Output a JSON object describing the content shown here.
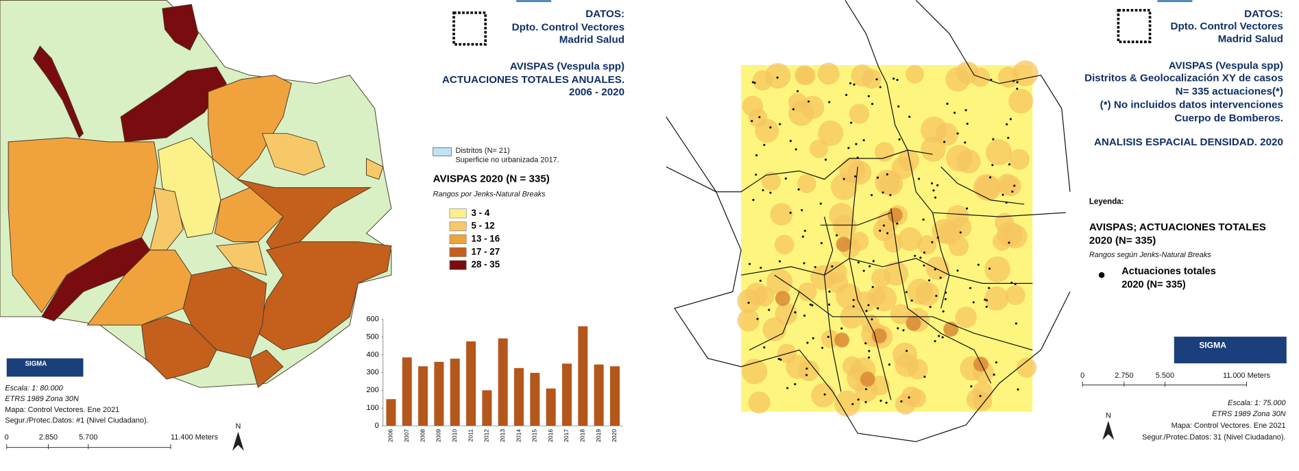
{
  "left_panel": {
    "source": [
      "DATOS:",
      "Dpto. Control Vectores",
      "Madrid Salud"
    ],
    "title": [
      "AVISPAS (Vespula spp)",
      "ACTUACIONES TOTALES ANUALES.",
      "2006 - 2020"
    ],
    "legend": {
      "districts": "Distritos (N= 21)",
      "non_urban": "Superficie no urbanizada 2017.",
      "title": "AVISPAS 2020 (N = 335)",
      "subtitle": "Rangos por Jenks-Natural Breaks",
      "classes": [
        {
          "label": "3 - 4",
          "color": "#fbf08a"
        },
        {
          "label": "5 - 12",
          "color": "#f6c868"
        },
        {
          "label": "13 - 16",
          "color": "#f0a33c"
        },
        {
          "label": "17 - 27",
          "color": "#c4601c"
        },
        {
          "label": "28 - 35",
          "color": "#780c0e"
        }
      ]
    },
    "logo": "SIGMA",
    "notes": [
      "Escala: 1: 80.000",
      "ETRS 1989 Zona 30N",
      "Mapa: Control Vectores. Ene 2021",
      "Segur./Protec.Datos: #1 (Nivel Ciudadano)."
    ],
    "scale": [
      "0",
      "2.850",
      "5.700",
      "11.400 Meters"
    ],
    "north": "N"
  },
  "chart_data": {
    "type": "bar",
    "categories": [
      "2006",
      "2007",
      "2008",
      "2009",
      "2010",
      "2011",
      "2012",
      "2013",
      "2014",
      "2015",
      "2016",
      "2017",
      "2018",
      "2019",
      "2020"
    ],
    "values": [
      150,
      385,
      335,
      360,
      378,
      475,
      200,
      492,
      325,
      298,
      210,
      350,
      560,
      345,
      335
    ],
    "color": "#b5561b",
    "ylim": [
      0,
      600
    ],
    "yticks": [
      0,
      100,
      200,
      300,
      400,
      500,
      600
    ]
  },
  "right_panel": {
    "source": [
      "DATOS:",
      "Dpto. Control Vectores",
      "Madrid Salud"
    ],
    "title": [
      "AVISPAS (Vespula spp)",
      "Distritos & Geolocalización XY de casos",
      "N= 335 actuaciones(*)",
      "(*) No incluidos datos intervenciones",
      "Cuerpo de Bomberos.",
      "ANALISIS ESPACIAL DENSIDAD. 2020"
    ],
    "legend": {
      "heading": "Leyenda:",
      "title": [
        "AVISPAS; ACTUACIONES TOTALES",
        "2020  (N= 335)"
      ],
      "subtitle": "Rangos según Jenks-Natural Breaks",
      "item": [
        "Actuaciones totales",
        "2020  (N= 335)"
      ]
    },
    "logo": "SIGMA",
    "scale": [
      "0",
      "2.750",
      "5.500",
      "11.000 Meters"
    ],
    "notes": [
      "Escala: 1: 75.000",
      "ETRS 1989 Zona 30N",
      "Mapa: Control Vectores. Ene 2021",
      "Segur./Protec.Datos: 31 (Nivel Ciudadano)."
    ],
    "north": "N"
  }
}
